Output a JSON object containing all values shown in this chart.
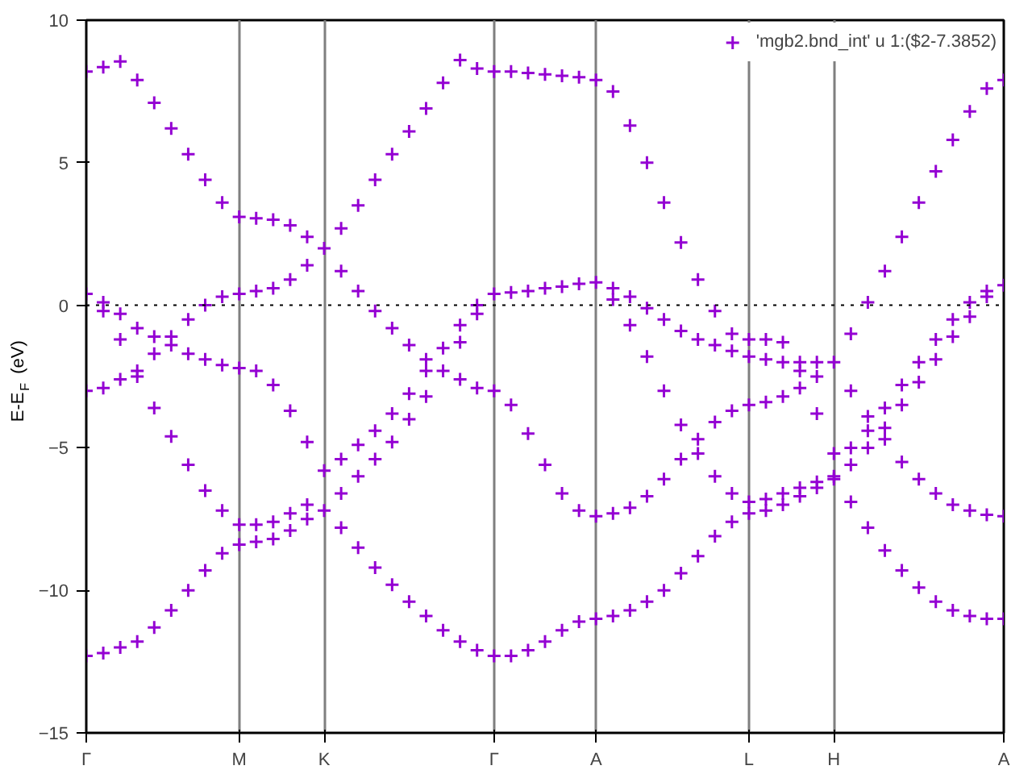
{
  "chart_data": {
    "type": "scatter",
    "ylabel": "E-E$_{F}$ (eV)",
    "ylim": [
      -15,
      10
    ],
    "categories": [
      "Γ",
      null,
      null,
      null,
      null,
      null,
      null,
      null,
      null,
      "M",
      null,
      null,
      null,
      null,
      "K",
      null,
      null,
      null,
      null,
      null,
      null,
      null,
      null,
      null,
      "Γ",
      null,
      null,
      null,
      null,
      null,
      "A",
      null,
      null,
      null,
      null,
      null,
      null,
      null,
      null,
      "L",
      null,
      null,
      null,
      null,
      "H",
      null,
      null,
      null,
      null,
      null,
      null,
      null,
      null,
      null,
      "A"
    ],
    "yticks": [
      -15,
      -10,
      -5,
      0,
      5,
      10
    ],
    "grid": "x",
    "legend": "top right",
    "marker": "cross",
    "ref_lines": [
      {
        "axis": "y",
        "value": 0,
        "color": "#000000",
        "line_style": "dotted"
      }
    ],
    "series": [
      {
        "name": "'mgb2.bnd_int' u 1:($2-7.3852)",
        "color": "#9400d3",
        "values": [
          8.2,
          8.35,
          8.55,
          7.9,
          7.1,
          6.2,
          5.3,
          4.4,
          3.6,
          3.1,
          3.05,
          3.0,
          2.8,
          2.4,
          2.0,
          2.7,
          3.5,
          4.4,
          5.3,
          6.1,
          6.9,
          7.8,
          8.6,
          8.3,
          8.2,
          8.2,
          8.15,
          8.1,
          8.05,
          8.0,
          7.9,
          7.5,
          6.3,
          5.0,
          3.6,
          2.2,
          0.9,
          -0.2,
          -1.0,
          -1.2,
          -1.2,
          -1.3,
          -2.3,
          -3.8,
          -5.2,
          -5.0,
          -4.4,
          -3.6,
          -2.8,
          -2.0,
          -1.2,
          -0.5,
          0.1,
          0.5,
          0.7
        ]
      },
      {
        "color": "#9400d3",
        "values": [
          -3.0,
          -2.9,
          -2.6,
          -2.3,
          -1.7,
          -1.1,
          -0.5,
          0.0,
          0.3,
          0.4,
          0.5,
          0.6,
          0.9,
          1.4,
          null,
          1.2,
          0.5,
          -0.2,
          -0.8,
          -1.4,
          -1.9,
          -2.3,
          -2.6,
          -2.9,
          -3.0,
          0.45,
          0.5,
          0.6,
          0.65,
          0.75,
          0.8,
          0.6,
          0.3,
          -0.1,
          -0.5,
          -0.9,
          -1.2,
          -1.4,
          -1.6,
          -1.8,
          -1.9,
          -2.0,
          -2.0,
          -2.0,
          -2.0,
          -1.0,
          0.1,
          1.2,
          2.4,
          3.6,
          4.7,
          5.8,
          6.8,
          7.6,
          7.9
        ]
      },
      {
        "color": "#9400d3",
        "values": [
          0.4,
          0.1,
          -0.3,
          -0.8,
          -1.1,
          -1.4,
          -1.7,
          -1.9,
          -2.1,
          -2.2,
          -2.3,
          -2.8,
          -3.7,
          -4.8,
          -5.8,
          -5.4,
          -4.9,
          -4.4,
          -3.8,
          -3.1,
          -2.3,
          -1.5,
          -0.7,
          0.0,
          0.4,
          -3.5,
          -4.5,
          -5.6,
          -6.6,
          -7.2,
          -7.4,
          -7.3,
          -7.1,
          -6.7,
          -6.1,
          -5.4,
          -4.7,
          -4.1,
          -3.7,
          -3.5,
          -3.4,
          -3.2,
          -2.9,
          -2.5,
          null,
          -3.0,
          -3.9,
          -4.7,
          -5.5,
          -6.1,
          -6.6,
          -7.0,
          -7.2,
          -7.35,
          -7.4
        ]
      },
      {
        "color": "#9400d3",
        "values": [
          null,
          -0.2,
          -1.2,
          -2.5,
          -3.6,
          -4.6,
          -5.6,
          -6.5,
          -7.2,
          -7.7,
          -7.7,
          -7.6,
          -7.3,
          -7.0,
          -7.2,
          -6.6,
          -6.0,
          -5.4,
          -4.8,
          -4.0,
          -3.2,
          null,
          -1.3,
          -0.3,
          null,
          null,
          null,
          null,
          null,
          null,
          null,
          0.2,
          -0.7,
          -1.8,
          -3.0,
          -4.2,
          -5.2,
          -6.0,
          -6.6,
          -6.9,
          -6.8,
          -6.6,
          -6.4,
          -6.2,
          -6.0,
          -5.6,
          -5.0,
          -4.3,
          -3.5,
          -2.7,
          -1.9,
          -1.1,
          -0.4,
          0.3,
          null
        ]
      },
      {
        "color": "#9400d3",
        "values": [
          -12.3,
          -12.2,
          -12.0,
          -11.8,
          -11.3,
          -10.7,
          -10.0,
          -9.3,
          -8.7,
          -8.4,
          -8.3,
          -8.2,
          -7.9,
          -7.5,
          null,
          -7.8,
          -8.5,
          -9.2,
          -9.8,
          -10.4,
          -10.9,
          -11.4,
          -11.8,
          -12.1,
          -12.3,
          -12.3,
          -12.1,
          -11.8,
          -11.4,
          -11.1,
          -11.0,
          -10.9,
          -10.7,
          -10.4,
          -10.0,
          -9.4,
          -8.8,
          -8.1,
          -7.6,
          -7.3,
          -7.2,
          -7.0,
          -6.7,
          -6.4,
          -6.1,
          -6.9,
          -7.8,
          -8.6,
          -9.3,
          -9.9,
          -10.4,
          -10.7,
          -10.9,
          -11.0,
          -11.0
        ]
      }
    ]
  }
}
